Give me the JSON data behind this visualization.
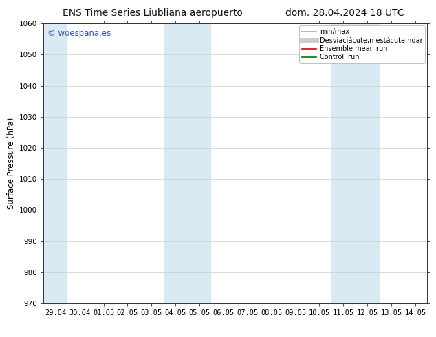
{
  "title_left": "ENS Time Series Liubliana aeropuerto",
  "title_right": "dom. 28.04.2024 18 UTC",
  "ylabel": "Surface Pressure (hPa)",
  "ylim": [
    970,
    1060
  ],
  "yticks": [
    970,
    980,
    990,
    1000,
    1010,
    1020,
    1030,
    1040,
    1050,
    1060
  ],
  "xtick_labels": [
    "29.04",
    "30.04",
    "01.05",
    "02.05",
    "03.05",
    "04.05",
    "05.05",
    "06.05",
    "07.05",
    "08.05",
    "09.05",
    "10.05",
    "11.05",
    "12.05",
    "13.05",
    "14.05"
  ],
  "xtick_positions": [
    0,
    1,
    2,
    3,
    4,
    5,
    6,
    7,
    8,
    9,
    10,
    11,
    12,
    13,
    14,
    15
  ],
  "shaded_bands": [
    {
      "xstart": -0.5,
      "xend": 0.5,
      "color": "#daeaf5"
    },
    {
      "xstart": 4.5,
      "xend": 6.5,
      "color": "#daeaf5"
    },
    {
      "xstart": 11.5,
      "xend": 13.5,
      "color": "#daeaf5"
    }
  ],
  "watermark_text": "© woespana.es",
  "watermark_color": "#3355cc",
  "legend_entries": [
    {
      "label": "min/max",
      "color": "#aaaaaa",
      "lw": 1.2
    },
    {
      "label": "Desviaciácute;n estácute;ndar",
      "color": "#cccccc",
      "lw": 5
    },
    {
      "label": "Ensemble mean run",
      "color": "#dd0000",
      "lw": 1.2
    },
    {
      "label": "Controll run",
      "color": "#007700",
      "lw": 1.2
    }
  ],
  "bg_color": "#ffffff",
  "plot_bg_color": "#ffffff",
  "grid_color": "#cccccc",
  "title_fontsize": 10,
  "tick_fontsize": 7.5,
  "ylabel_fontsize": 8.5
}
